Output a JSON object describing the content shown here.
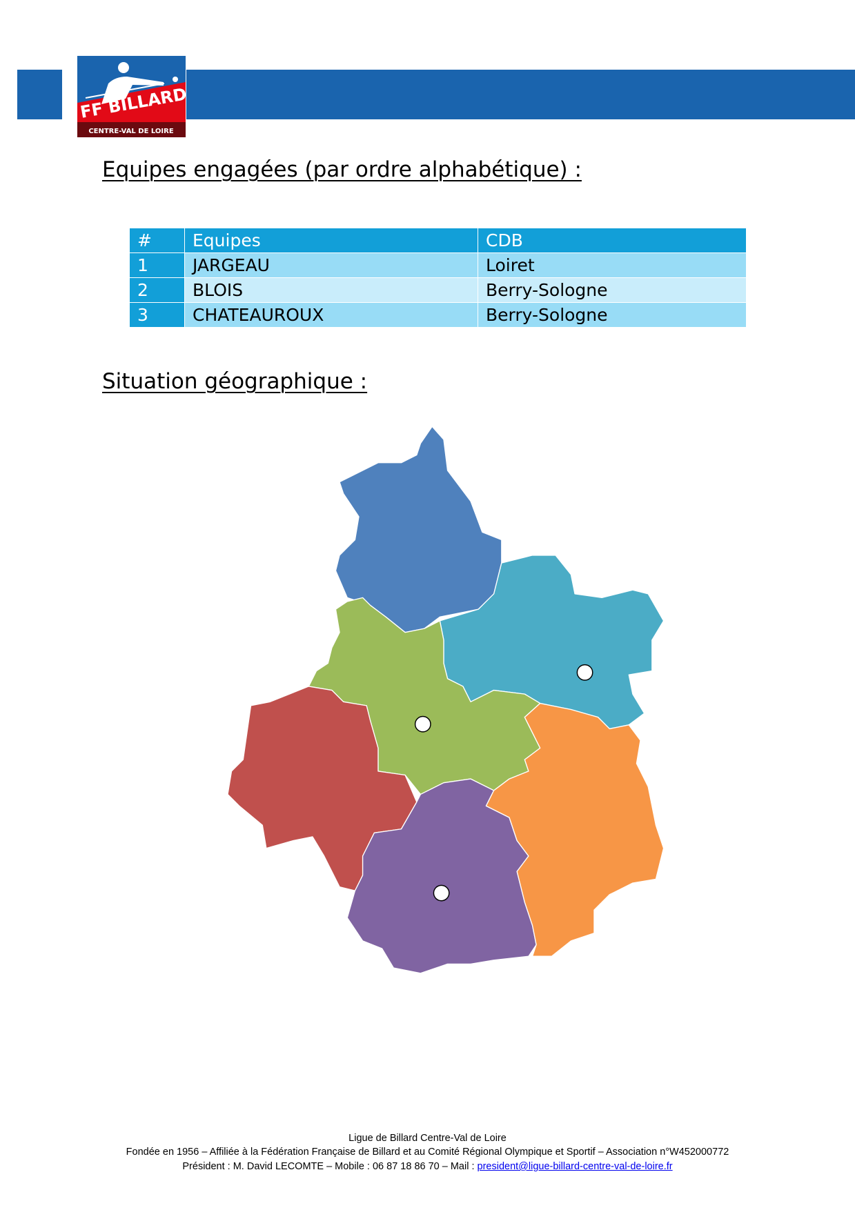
{
  "header": {
    "brand_color": "#1a64ae",
    "logo": {
      "main_text": "FF BILLARD",
      "sub_text": "CENTRE-VAL DE LOIRE"
    }
  },
  "teams_section": {
    "title": "Equipes engagées (par ordre alphabétique) :",
    "table": {
      "headers": [
        "#",
        "Equipes",
        "CDB"
      ],
      "rows": [
        [
          "1",
          "JARGEAU",
          "Loiret"
        ],
        [
          "2",
          "BLOIS",
          "Berry-Sologne"
        ],
        [
          "3",
          "CHATEAUROUX",
          "Berry-Sologne"
        ]
      ]
    }
  },
  "geo_section": {
    "title": "Situation géographique :",
    "map": {
      "region_colors": [
        "#4f81bd",
        "#4bacc6",
        "#9bbb59",
        "#c0504d",
        "#8064a2",
        "#f79646"
      ],
      "markers": 3
    }
  },
  "footer": {
    "line1": "Ligue de Billard Centre-Val de Loire",
    "line2": "Fondée en 1956 – Affiliée à la Fédération Française de Billard et au Comité Régional Olympique et Sportif – Association n°W452000772",
    "line3_prefix": "Président : M. David LECOMTE – Mobile : 06 87 18 86 70 – Mail : ",
    "email": "president@ligue-billard-centre-val-de-loire.fr"
  }
}
